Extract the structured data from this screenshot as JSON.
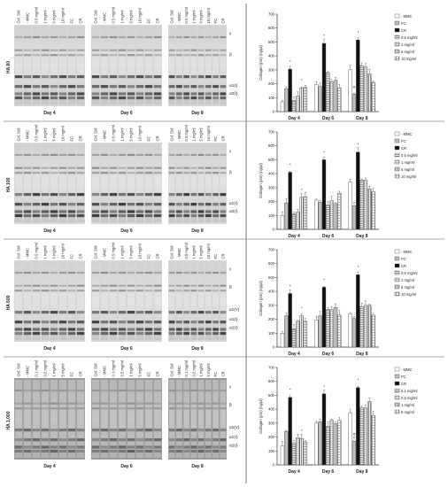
{
  "figure": {
    "lane_labels": [
      "Col. Std",
      "- MMC",
      "0.5 mg/ml",
      "1 mg/ml",
      "5 mg/ml",
      "10 mg/ml",
      "FC",
      "CR"
    ],
    "lane_labels_panel4": [
      "Col. Std",
      "- MMC",
      "0.1 mg/ml",
      "0.5 mg/ml",
      "1 mg/ml",
      "5 mg/ml",
      "FC",
      "CR"
    ],
    "band_labels": [
      "γ",
      "β",
      "α1(V)",
      "α1(I)",
      "α2(I)"
    ],
    "days": [
      "Day 4",
      "Day 6",
      "Day 8"
    ],
    "panels": [
      "HA 80",
      "HA 100",
      "HA 500",
      "HA 1,000"
    ]
  },
  "chart_data": [
    {
      "type": "bar",
      "title": "",
      "panel": "HA 80",
      "ylabel": "Collagen (pro) (ng/µl)",
      "ylim": [
        0,
        700
      ],
      "yticks": [
        0,
        100,
        200,
        300,
        400,
        500,
        600,
        700
      ],
      "categories": [
        "Day 4",
        "Day 6",
        "Day 8"
      ],
      "series": [
        {
          "name": "- MMC",
          "values": [
            70,
            195,
            300
          ]
        },
        {
          "name": "FC",
          "values": [
            165,
            180,
            125
          ]
        },
        {
          "name": "CR",
          "values": [
            305,
            490,
            515
          ]
        },
        {
          "name": "0.5 mg/ml",
          "values": [
            80,
            280,
            330
          ]
        },
        {
          "name": "1 mg/ml",
          "values": [
            110,
            215,
            320
          ]
        },
        {
          "name": "5 mg/ml",
          "values": [
            170,
            225,
            270
          ]
        },
        {
          "name": "10 mg/ml",
          "values": [
            175,
            170,
            210
          ]
        }
      ],
      "annotations": [
        "*",
        "*",
        "*",
        "*",
        "#"
      ]
    },
    {
      "type": "bar",
      "title": "",
      "panel": "HA 100",
      "ylabel": "Collagen (pro) (ng/µl)",
      "ylim": [
        0,
        700
      ],
      "yticks": [
        0,
        100,
        200,
        300,
        400,
        500,
        600,
        700
      ],
      "categories": [
        "Day 4",
        "Day 6",
        "Day 8"
      ],
      "series": [
        {
          "name": "- MMC",
          "values": [
            100,
            210,
            340
          ]
        },
        {
          "name": "FC",
          "values": [
            190,
            195,
            170
          ]
        },
        {
          "name": "CR",
          "values": [
            410,
            500,
            555
          ]
        },
        {
          "name": "0.5 mg/ml",
          "values": [
            110,
            175,
            355
          ]
        },
        {
          "name": "1 mg/ml",
          "values": [
            125,
            205,
            355
          ]
        },
        {
          "name": "5 mg/ml",
          "values": [
            230,
            185,
            290
          ]
        },
        {
          "name": "10 mg/ml",
          "values": [
            235,
            260,
            270
          ]
        }
      ],
      "annotations": [
        "*",
        "*",
        "*",
        "*"
      ]
    },
    {
      "type": "bar",
      "title": "",
      "panel": "HA 500",
      "ylabel": "Collagen (pro) (ng/µl)",
      "ylim": [
        0,
        700
      ],
      "yticks": [
        0,
        100,
        200,
        300,
        400,
        500,
        600,
        700
      ],
      "categories": [
        "Day 4",
        "Day 6",
        "Day 8"
      ],
      "series": [
        {
          "name": "- MMC",
          "values": [
            100,
            195,
            240
          ]
        },
        {
          "name": "FC",
          "values": [
            225,
            225,
            205
          ]
        },
        {
          "name": "CR",
          "values": [
            385,
            430,
            520
          ]
        },
        {
          "name": "0.5 mg/ml",
          "values": [
            130,
            270,
            290
          ]
        },
        {
          "name": "1 mg/ml",
          "values": [
            185,
            270,
            300
          ]
        },
        {
          "name": "5 mg/ml",
          "values": [
            225,
            285,
            300
          ]
        },
        {
          "name": "10 mg/ml",
          "values": [
            185,
            230,
            230
          ]
        }
      ],
      "annotations": [
        "*",
        "*",
        "*",
        "*"
      ]
    },
    {
      "type": "bar",
      "title": "",
      "panel": "HA 1,000",
      "ylabel": "Collagen (pro) (ng/µl)",
      "ylim": [
        0,
        700
      ],
      "yticks": [
        0,
        100,
        200,
        300,
        400,
        500,
        600,
        700
      ],
      "categories": [
        "Day 4",
        "Day 6",
        "Day 8"
      ],
      "series": [
        {
          "name": "- MMC",
          "values": [
            135,
            300,
            375
          ]
        },
        {
          "name": "FC",
          "values": [
            240,
            310,
            170
          ]
        },
        {
          "name": "CR",
          "values": [
            485,
            510,
            555
          ]
        },
        {
          "name": "0.1 mg/ml",
          "values": [
            155,
            275,
            410
          ]
        },
        {
          "name": "0.5 mg/ml",
          "values": [
            195,
            320,
            410
          ]
        },
        {
          "name": "1 mg/ml",
          "values": [
            190,
            295,
            455
          ]
        },
        {
          "name": "5 mg/ml",
          "values": [
            165,
            320,
            355
          ]
        }
      ],
      "annotations": [
        "*",
        "*",
        "*",
        "*",
        "#"
      ]
    }
  ],
  "style": {
    "fills": [
      "#ffffff",
      "#bdbdbd",
      "#111111",
      "#e0e0e0",
      "#d8d8d8",
      "#c8c8c8",
      "#efefef"
    ],
    "patterns": [
      "none",
      "none",
      "none",
      "hlines",
      "dots",
      "vlines",
      "grid"
    ]
  }
}
